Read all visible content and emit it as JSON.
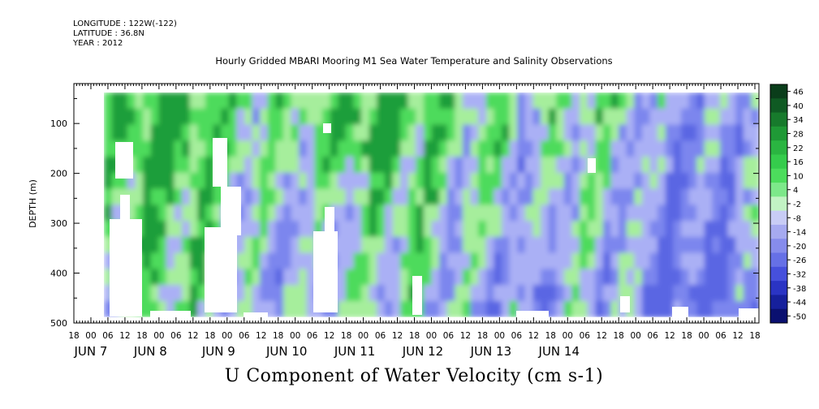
{
  "header": {
    "longitude": "LONGITUDE : 122W(-122)",
    "latitude": "LATITUDE : 36.8N",
    "year": "YEAR : 2012"
  },
  "chart_data": {
    "type": "heatmap",
    "title": "Hourly Gridded MBARI Mooring M1 Sea Water Temperature and Salinity Observations",
    "xlabel": "U Component of Water Velocity (cm s-1)",
    "ylabel": "DEPTH (m)",
    "ylim": [
      500,
      20
    ],
    "y_ticks": [
      100,
      200,
      300,
      400,
      500
    ],
    "x_hour_ticks": [
      "18",
      "00",
      "06",
      "12",
      "18",
      "00",
      "06",
      "12",
      "18",
      "00",
      "06",
      "12",
      "18",
      "00",
      "06",
      "12",
      "18",
      "00",
      "06",
      "12",
      "18",
      "00",
      "06",
      "12",
      "18",
      "00",
      "06",
      "12",
      "18",
      "00",
      "06",
      "12",
      "18",
      "00",
      "06",
      "12",
      "18",
      "00",
      "06",
      "12",
      "18"
    ],
    "x_day_labels": [
      "JUN  7",
      "JUN  8",
      "JUN  9",
      "JUN 10",
      "JUN 11",
      "JUN 12",
      "JUN 13",
      "JUN 14"
    ],
    "colorbar": {
      "levels": [
        "46",
        "40",
        "34",
        "28",
        "22",
        "16",
        "10",
        "4",
        "-2",
        "-8",
        "-14",
        "-20",
        "-26",
        "-32",
        "-38",
        "-44",
        "-50"
      ],
      "colors": [
        "#0a3d1a",
        "#0f5a23",
        "#177a2c",
        "#1f9936",
        "#2ab541",
        "#35cc4c",
        "#4cdc5c",
        "#7de88a",
        "#c2f3c4",
        "#c8ccf5",
        "#a6aaf0",
        "#868cec",
        "#6670e6",
        "#4650dc",
        "#2a34c4",
        "#16209c",
        "#0a1070"
      ]
    },
    "palette": {
      "green_strong": "#1f9e3a",
      "green_mid": "#4ddb5b",
      "green_light": "#a6ee9c",
      "blue_light": "#aab0f5",
      "blue_mid": "#7c86ee",
      "blue_strong": "#5a66e3"
    }
  }
}
